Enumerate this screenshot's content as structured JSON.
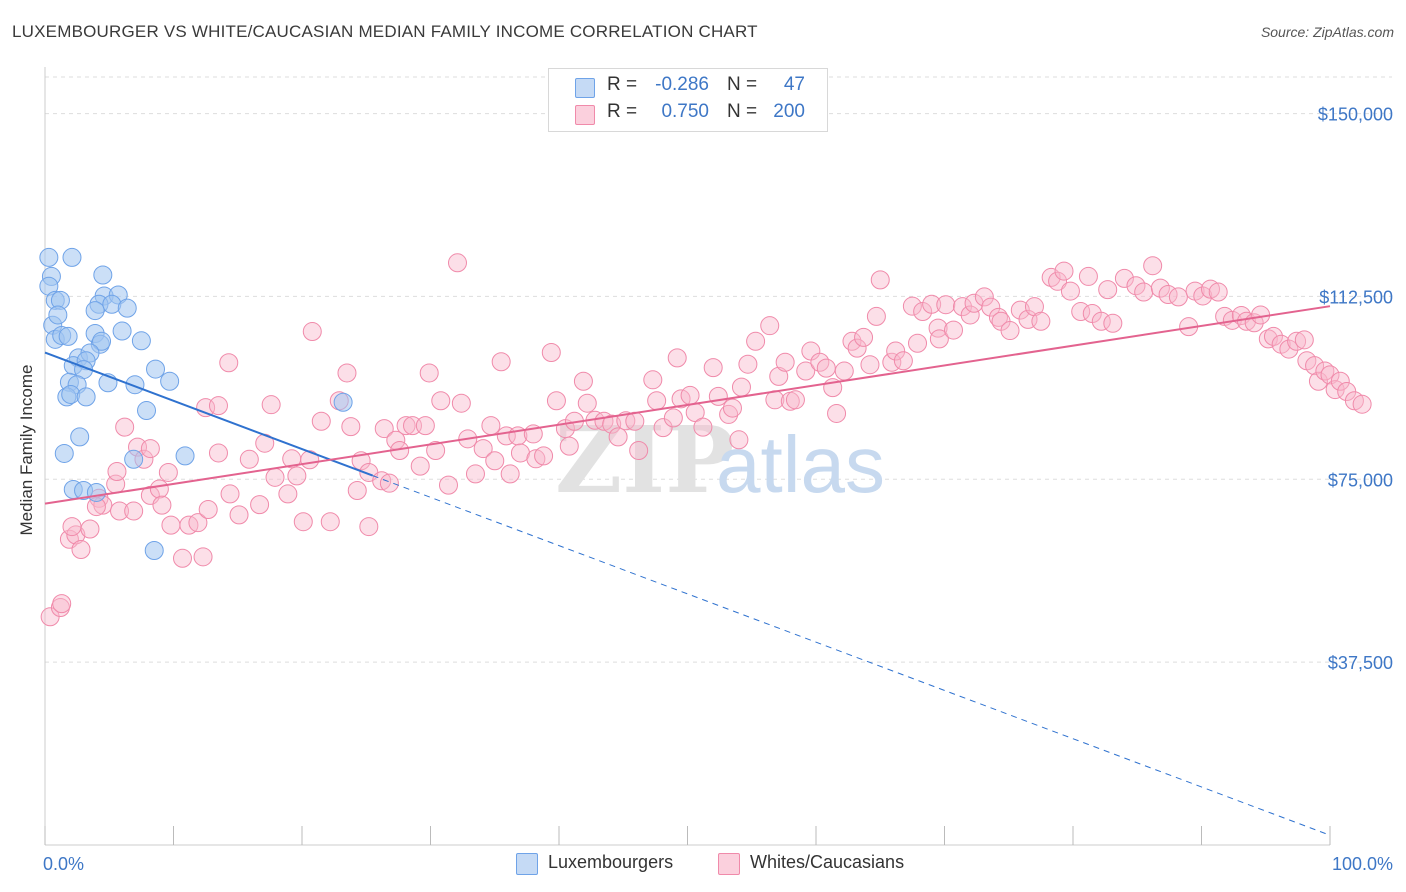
{
  "title": "LUXEMBOURGER VS WHITE/CAUCASIAN MEDIAN FAMILY INCOME CORRELATION CHART",
  "source": "Source: ZipAtlas.com",
  "watermark": {
    "zip": "ZIP",
    "atlas": "atlas"
  },
  "legend_top": [
    {
      "r_label": "R =",
      "r_value": "-0.286",
      "n_label": "N =",
      "n_value": "47",
      "color": "#6fa3e8"
    },
    {
      "r_label": "R =",
      "r_value": "0.750",
      "n_label": "N =",
      "n_value": "200",
      "color": "#f08aaa"
    }
  ],
  "legend_bottom": [
    {
      "label": "Luxembourgers",
      "color": "#6fa3e8"
    },
    {
      "label": "Whites/Caucasians",
      "color": "#f08aaa"
    }
  ],
  "chart_data": {
    "type": "scatter",
    "title": "LUXEMBOURGER VS WHITE/CAUCASIAN MEDIAN FAMILY INCOME CORRELATION CHART",
    "xlabel": "",
    "ylabel": "Median Family Income",
    "xlim": [
      0,
      100
    ],
    "ylim": [
      0,
      157500
    ],
    "x_tick_labels": [
      "0.0%",
      "100.0%"
    ],
    "y_ticks": [
      37500,
      75000,
      112500,
      150000
    ],
    "y_tick_labels": [
      "$37,500",
      "$75,000",
      "$112,500",
      "$150,000"
    ],
    "grid": true,
    "legend_placement": "top-center",
    "series": [
      {
        "name": "Luxembourgers",
        "color": "#6fa3e8",
        "points": [
          [
            0.5,
            116600
          ],
          [
            0.3,
            114600
          ],
          [
            0.3,
            120500
          ],
          [
            2.1,
            120500
          ],
          [
            0.8,
            111700
          ],
          [
            1.2,
            111700
          ],
          [
            0.6,
            106600
          ],
          [
            1.0,
            108700
          ],
          [
            0.8,
            103700
          ],
          [
            1.3,
            104500
          ],
          [
            1.8,
            104300
          ],
          [
            2.6,
            99900
          ],
          [
            4.5,
            116900
          ],
          [
            4.6,
            112600
          ],
          [
            5.7,
            112800
          ],
          [
            4.2,
            110900
          ],
          [
            5.2,
            110900
          ],
          [
            6.4,
            110100
          ],
          [
            3.9,
            109600
          ],
          [
            3.9,
            104900
          ],
          [
            4.3,
            102700
          ],
          [
            4.4,
            103300
          ],
          [
            6.0,
            105400
          ],
          [
            7.5,
            103400
          ],
          [
            3.5,
            100900
          ],
          [
            2.2,
            98300
          ],
          [
            3.2,
            99300
          ],
          [
            3.0,
            97500
          ],
          [
            1.9,
            94900
          ],
          [
            2.5,
            94400
          ],
          [
            4.9,
            94800
          ],
          [
            8.6,
            97600
          ],
          [
            7.0,
            94400
          ],
          [
            9.7,
            95100
          ],
          [
            1.7,
            91900
          ],
          [
            2.0,
            92400
          ],
          [
            3.2,
            91900
          ],
          [
            7.9,
            89100
          ],
          [
            23.2,
            90800
          ],
          [
            2.7,
            83700
          ],
          [
            1.5,
            80300
          ],
          [
            10.9,
            79800
          ],
          [
            6.9,
            79100
          ],
          [
            2.2,
            72900
          ],
          [
            3.0,
            72700
          ],
          [
            4.0,
            72300
          ],
          [
            8.5,
            60400
          ]
        ]
      },
      {
        "name": "Whites/Caucasians",
        "color": "#f08aaa",
        "points": [
          [
            0.4,
            46800
          ],
          [
            1.2,
            48700
          ],
          [
            1.3,
            49500
          ],
          [
            1.9,
            62700
          ],
          [
            2.4,
            63600
          ],
          [
            2.8,
            60600
          ],
          [
            3.5,
            64800
          ],
          [
            2.1,
            65300
          ],
          [
            4.2,
            71100
          ],
          [
            4.5,
            69700
          ],
          [
            4.0,
            69400
          ],
          [
            5.5,
            74000
          ],
          [
            5.6,
            76600
          ],
          [
            6.2,
            85700
          ],
          [
            7.2,
            81600
          ],
          [
            7.7,
            79100
          ],
          [
            5.8,
            68500
          ],
          [
            6.9,
            68500
          ],
          [
            8.2,
            71700
          ],
          [
            8.2,
            81300
          ],
          [
            8.9,
            73000
          ],
          [
            9.1,
            69700
          ],
          [
            9.6,
            76400
          ],
          [
            9.8,
            65600
          ],
          [
            10.7,
            58800
          ],
          [
            11.2,
            65600
          ],
          [
            12.3,
            59100
          ],
          [
            11.9,
            66100
          ],
          [
            12.7,
            68800
          ],
          [
            13.5,
            80400
          ],
          [
            12.5,
            89700
          ],
          [
            13.5,
            90100
          ],
          [
            14.3,
            98900
          ],
          [
            14.4,
            72000
          ],
          [
            15.1,
            67700
          ],
          [
            15.9,
            79100
          ],
          [
            16.7,
            69800
          ],
          [
            17.1,
            82400
          ],
          [
            17.9,
            75400
          ],
          [
            17.6,
            90300
          ],
          [
            18.9,
            72000
          ],
          [
            19.2,
            79200
          ],
          [
            19.6,
            75700
          ],
          [
            20.1,
            66300
          ],
          [
            20.6,
            79000
          ],
          [
            20.8,
            105300
          ],
          [
            21.5,
            86900
          ],
          [
            22.2,
            66300
          ],
          [
            22.9,
            91100
          ],
          [
            23.5,
            96800
          ],
          [
            23.8,
            85800
          ],
          [
            24.3,
            72700
          ],
          [
            24.6,
            78800
          ],
          [
            25.2,
            76400
          ],
          [
            25.2,
            65300
          ],
          [
            26.2,
            74700
          ],
          [
            26.4,
            85400
          ],
          [
            26.8,
            74200
          ],
          [
            27.3,
            83000
          ],
          [
            27.6,
            80900
          ],
          [
            28.1,
            86000
          ],
          [
            28.6,
            86000
          ],
          [
            29.2,
            77700
          ],
          [
            29.6,
            86000
          ],
          [
            29.9,
            96800
          ],
          [
            30.4,
            80900
          ],
          [
            30.8,
            91100
          ],
          [
            31.4,
            73800
          ],
          [
            32.1,
            119400
          ],
          [
            32.4,
            90600
          ],
          [
            32.9,
            83300
          ],
          [
            33.5,
            76100
          ],
          [
            34.1,
            81300
          ],
          [
            34.7,
            86000
          ],
          [
            35.0,
            78800
          ],
          [
            35.5,
            99100
          ],
          [
            35.9,
            83900
          ],
          [
            36.2,
            76100
          ],
          [
            36.8,
            83900
          ],
          [
            37.0,
            80400
          ],
          [
            38.0,
            84300
          ],
          [
            38.2,
            79200
          ],
          [
            38.8,
            79800
          ],
          [
            39.4,
            101000
          ],
          [
            39.8,
            91100
          ],
          [
            40.5,
            85400
          ],
          [
            40.8,
            81800
          ],
          [
            41.2,
            86900
          ],
          [
            41.9,
            95100
          ],
          [
            42.2,
            90600
          ],
          [
            42.8,
            87100
          ],
          [
            43.5,
            86900
          ],
          [
            44.1,
            86300
          ],
          [
            44.6,
            83700
          ],
          [
            45.2,
            87000
          ],
          [
            45.9,
            86900
          ],
          [
            46.2,
            80900
          ],
          [
            47.3,
            95400
          ],
          [
            47.6,
            91100
          ],
          [
            48.1,
            85600
          ],
          [
            48.9,
            87600
          ],
          [
            49.2,
            99900
          ],
          [
            49.5,
            91500
          ],
          [
            50.2,
            92200
          ],
          [
            50.6,
            88700
          ],
          [
            51.2,
            85700
          ],
          [
            52.0,
            97900
          ],
          [
            52.4,
            92000
          ],
          [
            53.2,
            88300
          ],
          [
            53.5,
            89600
          ],
          [
            54.0,
            83100
          ],
          [
            54.2,
            93900
          ],
          [
            54.7,
            98600
          ],
          [
            55.3,
            103300
          ],
          [
            56.4,
            106500
          ],
          [
            56.8,
            91300
          ],
          [
            57.1,
            96100
          ],
          [
            57.6,
            99000
          ],
          [
            58.0,
            91000
          ],
          [
            58.4,
            91300
          ],
          [
            59.2,
            97200
          ],
          [
            59.6,
            101300
          ],
          [
            60.3,
            99000
          ],
          [
            60.8,
            97800
          ],
          [
            61.3,
            93800
          ],
          [
            61.6,
            88500
          ],
          [
            62.2,
            97200
          ],
          [
            62.8,
            103300
          ],
          [
            63.2,
            101900
          ],
          [
            63.7,
            104100
          ],
          [
            64.2,
            98500
          ],
          [
            64.7,
            108400
          ],
          [
            65.0,
            115900
          ],
          [
            65.9,
            99000
          ],
          [
            66.2,
            101300
          ],
          [
            66.8,
            99300
          ],
          [
            67.5,
            110500
          ],
          [
            67.9,
            102900
          ],
          [
            68.3,
            109400
          ],
          [
            69.0,
            110900
          ],
          [
            69.5,
            106000
          ],
          [
            69.6,
            103800
          ],
          [
            70.1,
            110800
          ],
          [
            70.7,
            105600
          ],
          [
            71.4,
            110400
          ],
          [
            72.0,
            108700
          ],
          [
            72.3,
            111100
          ],
          [
            73.1,
            112400
          ],
          [
            73.6,
            110300
          ],
          [
            74.2,
            108200
          ],
          [
            74.4,
            107400
          ],
          [
            75.1,
            105500
          ],
          [
            75.9,
            109700
          ],
          [
            76.5,
            107800
          ],
          [
            77.0,
            110400
          ],
          [
            77.5,
            107400
          ],
          [
            78.3,
            116400
          ],
          [
            78.8,
            115600
          ],
          [
            79.3,
            117700
          ],
          [
            79.8,
            113600
          ],
          [
            80.6,
            109400
          ],
          [
            81.2,
            116600
          ],
          [
            81.5,
            109000
          ],
          [
            82.2,
            107400
          ],
          [
            82.7,
            113900
          ],
          [
            83.1,
            107000
          ],
          [
            84.0,
            116200
          ],
          [
            84.9,
            114700
          ],
          [
            85.5,
            113400
          ],
          [
            86.2,
            118800
          ],
          [
            86.8,
            114200
          ],
          [
            87.4,
            112900
          ],
          [
            88.2,
            112400
          ],
          [
            89.0,
            106300
          ],
          [
            89.5,
            113600
          ],
          [
            90.1,
            112600
          ],
          [
            90.7,
            114000
          ],
          [
            91.3,
            113400
          ],
          [
            91.8,
            108400
          ],
          [
            92.4,
            107600
          ],
          [
            93.1,
            108600
          ],
          [
            93.5,
            107400
          ],
          [
            94.1,
            107100
          ],
          [
            94.6,
            108700
          ],
          [
            95.2,
            103800
          ],
          [
            95.6,
            104300
          ],
          [
            96.2,
            102700
          ],
          [
            96.8,
            101700
          ],
          [
            97.4,
            103300
          ],
          [
            98.0,
            103600
          ],
          [
            98.2,
            99300
          ],
          [
            98.8,
            98300
          ],
          [
            99.1,
            95100
          ],
          [
            99.6,
            97200
          ],
          [
            100.0,
            96400
          ],
          [
            100.4,
            93400
          ],
          [
            100.8,
            95100
          ],
          [
            101.3,
            93000
          ],
          [
            101.9,
            91100
          ],
          [
            102.5,
            90400
          ]
        ]
      }
    ],
    "trend_lines": [
      {
        "series": "Luxembourgers",
        "solid_x": [
          0,
          25.5
        ],
        "dashed_x": [
          25.5,
          100
        ],
        "y_at_0": 101000,
        "y_at_100": 2000
      },
      {
        "series": "Whites/Caucasians",
        "solid_x": [
          0,
          100
        ],
        "y_at_0": 70000,
        "y_at_100": 110500
      }
    ]
  }
}
